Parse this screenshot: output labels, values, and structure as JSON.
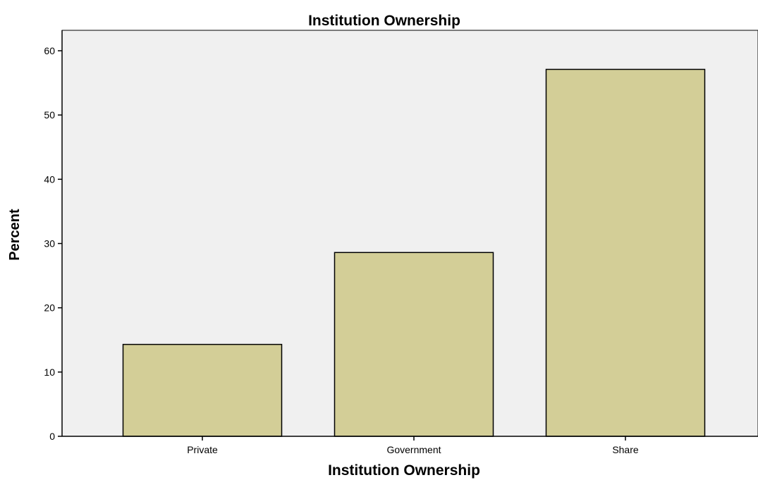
{
  "chart_data": {
    "type": "bar",
    "title": "Institution Ownership",
    "xlabel": "Institution Ownership",
    "ylabel": "Percent",
    "categories": [
      "Private",
      "Government",
      "Share"
    ],
    "values": [
      14.3,
      28.6,
      57.1
    ],
    "ylim": [
      0,
      63
    ],
    "yticks": [
      0,
      10,
      20,
      30,
      40,
      50,
      60
    ],
    "grid": false,
    "legend": "none",
    "colors": {
      "plot_background": "#f0f0f0",
      "bar_fill": "#d3ce97",
      "bar_stroke": "#000000"
    }
  }
}
